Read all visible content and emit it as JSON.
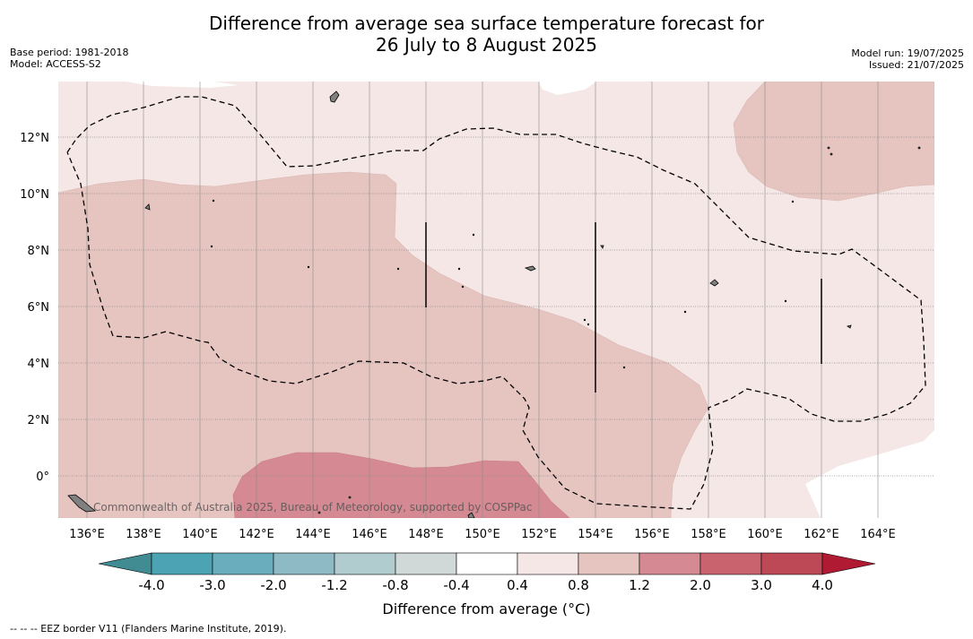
{
  "title": {
    "line1": "Difference from average sea surface temperature forecast for",
    "line2": "26 July to 8 August 2025"
  },
  "meta_left": {
    "base_period": "Base period: 1981-2018",
    "model": "Model: ACCESS-S2"
  },
  "meta_right": {
    "model_run": "Model run: 19/07/2025",
    "issued": "Issued: 21/07/2025"
  },
  "map": {
    "lon_labels": [
      "136°E",
      "138°E",
      "140°E",
      "142°E",
      "144°E",
      "146°E",
      "148°E",
      "150°E",
      "152°E",
      "154°E",
      "156°E",
      "158°E",
      "160°E",
      "162°E",
      "164°E"
    ],
    "lat_labels": [
      "12°N",
      "10°N",
      "8°N",
      "6°N",
      "4°N",
      "2°N",
      "0°"
    ],
    "attribution": "Commonwealth of Australia 2025, Bureau of Meteorology, supported by COSPPac",
    "colors": {
      "land": "#808080",
      "anomaly_0_4_0_8": "#f5e7e6",
      "anomaly_0_8_1_2": "#e6c5c1",
      "anomaly_1_2_2_0": "#d58a93"
    }
  },
  "colorbar": {
    "label": "Difference from average (°C)",
    "ticks": [
      "-4.0",
      "-3.0",
      "-2.0",
      "-1.2",
      "-0.8",
      "-0.4",
      "0.4",
      "0.8",
      "1.2",
      "2.0",
      "3.0",
      "4.0"
    ],
    "colors": [
      "#418c93",
      "#4ba3b4",
      "#6aaebd",
      "#8dbac5",
      "#b0cccf",
      "#d0d8d8",
      "#ffffff",
      "#f5e7e6",
      "#e6c5c1",
      "#d58a93",
      "#c9646f",
      "#be4956",
      "#b01a33"
    ]
  },
  "footer": "-- -- -- EEZ border V11 (Flanders Marine Institute, 2019)."
}
